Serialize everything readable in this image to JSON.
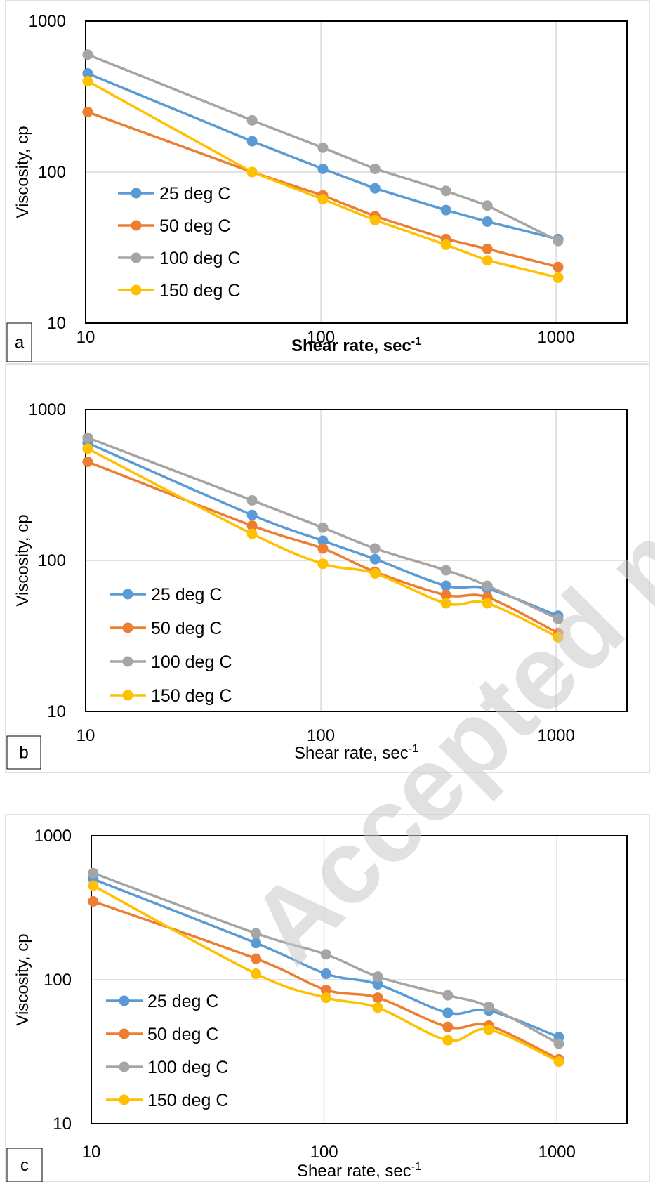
{
  "watermark": "Accepted manuscript",
  "colors": {
    "25 deg C": "#5B9BD5",
    "50 deg C": "#ED7D31",
    "100 deg C": "#A5A5A5",
    "150 deg C": "#FFC000"
  },
  "chart_data": [
    {
      "type": "line",
      "panel_label": "a",
      "xscale": "log",
      "yscale": "log",
      "xlim": [
        10,
        2000
      ],
      "ylim": [
        10,
        1000
      ],
      "xticks": [
        10,
        100,
        1000
      ],
      "yticks": [
        10,
        100,
        1000
      ],
      "xlabel": "Shear rate, sec",
      "xlabel_sup": "-1",
      "xlabel_bold": true,
      "ylabel": "Viscosity, cp",
      "grid": true,
      "legend_position": "left",
      "x": [
        10.2,
        51,
        102,
        170,
        340,
        510,
        1020
      ],
      "series": [
        {
          "name": "25 deg C",
          "values": [
            450,
            160,
            105,
            78,
            56,
            47,
            36
          ]
        },
        {
          "name": "50 deg C",
          "values": [
            250,
            100,
            70,
            51,
            36,
            31,
            23.5
          ]
        },
        {
          "name": "100 deg C",
          "values": [
            600,
            220,
            145,
            105,
            75,
            60,
            35
          ]
        },
        {
          "name": "150 deg C",
          "values": [
            400,
            100,
            66,
            48,
            33,
            26,
            20
          ]
        }
      ]
    },
    {
      "type": "line",
      "panel_label": "b",
      "xscale": "log",
      "yscale": "log",
      "xlim": [
        10,
        2000
      ],
      "ylim": [
        10,
        1000
      ],
      "xticks": [
        10,
        100,
        1000
      ],
      "yticks": [
        10,
        100,
        1000
      ],
      "xlabel": "Shear rate, sec",
      "xlabel_sup": "-1",
      "xlabel_bold": false,
      "ylabel": "Viscosity, cp",
      "grid": true,
      "legend_position": "left",
      "x": [
        10.2,
        51,
        102,
        170,
        340,
        510,
        1020
      ],
      "series": [
        {
          "name": "25 deg C",
          "values": [
            600,
            200,
            135,
            102,
            68,
            65,
            43
          ]
        },
        {
          "name": "50 deg C",
          "values": [
            450,
            170,
            120,
            84,
            59,
            57,
            33
          ]
        },
        {
          "name": "100 deg C",
          "values": [
            650,
            250,
            165,
            120,
            86,
            68,
            41
          ]
        },
        {
          "name": "150 deg C",
          "values": [
            550,
            150,
            95,
            82,
            52,
            52,
            31
          ]
        }
      ]
    },
    {
      "type": "line",
      "panel_label": "c",
      "xscale": "log",
      "yscale": "log",
      "xlim": [
        10,
        2000
      ],
      "ylim": [
        10,
        1000
      ],
      "xticks": [
        10,
        100,
        1000
      ],
      "yticks": [
        10,
        100,
        1000
      ],
      "xlabel": "Shear rate, sec",
      "xlabel_sup": "-1",
      "xlabel_bold": false,
      "ylabel": "Viscosity, cp",
      "grid": true,
      "legend_position": "left",
      "x": [
        10.2,
        51,
        102,
        170,
        340,
        510,
        1020
      ],
      "series": [
        {
          "name": "25 deg C",
          "values": [
            500,
            180,
            110,
            93,
            59,
            61,
            40
          ]
        },
        {
          "name": "50 deg C",
          "values": [
            350,
            140,
            85,
            75,
            47,
            48,
            28
          ]
        },
        {
          "name": "100 deg C",
          "values": [
            550,
            210,
            150,
            105,
            78,
            65,
            36
          ]
        },
        {
          "name": "150 deg C",
          "values": [
            450,
            110,
            75,
            64,
            38,
            45,
            27
          ]
        }
      ]
    }
  ]
}
